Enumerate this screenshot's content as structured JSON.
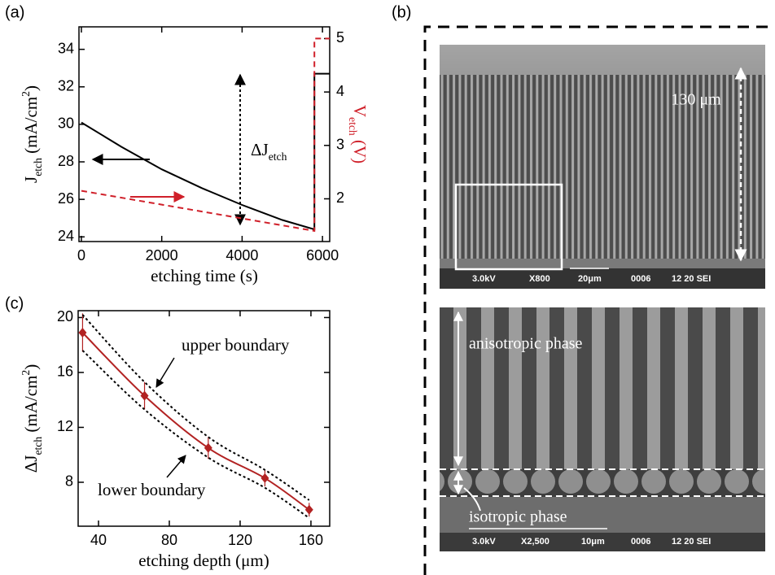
{
  "panel_labels": [
    "(a)",
    "(b)",
    "(c)"
  ],
  "chart_data": [
    {
      "type": "line",
      "x_label": "etching time (s)",
      "y_label": {
        "text": "J",
        "sub": "etch",
        "unit": " (mA/cm",
        "sup": "2",
        "end": ")"
      },
      "y2_label": {
        "text": "V",
        "sub": "etch",
        "unit": " (V)"
      },
      "y2_label_color": "#d0202a",
      "annotation": {
        "text": "ΔJ",
        "sub": "etch"
      },
      "xlim": [
        -60,
        6180
      ],
      "xticks": [
        0,
        2000,
        4000,
        6000
      ],
      "ylim": [
        23.75,
        35.2
      ],
      "yticks": [
        24,
        26,
        28,
        30,
        32,
        34
      ],
      "y2lim": [
        1.2,
        5.22
      ],
      "y2ticks": [
        2,
        3,
        4,
        5
      ],
      "grid": false,
      "series": [
        {
          "color": "#000000",
          "dashed": false,
          "x": [
            0,
            1000,
            2000,
            3000,
            4000,
            5000,
            5800,
            5800,
            6180
          ],
          "values": [
            30.1,
            28.8,
            27.6,
            26.6,
            25.7,
            24.9,
            24.4,
            32.7,
            32.7
          ]
        },
        {
          "color": "#d0202a",
          "dashed": true,
          "axis": "y2",
          "x": [
            0,
            5800,
            5800,
            6180
          ],
          "values": [
            2.15,
            1.4,
            5.0,
            5.0
          ]
        }
      ]
    },
    {
      "type": "errorbar",
      "x_label": "etching depth (μm)",
      "y_label": {
        "text": "ΔJ",
        "sub": "etch",
        "unit": " (mA/cm",
        "sup": "2",
        "end": ")"
      },
      "xlim": [
        28.5,
        170.6
      ],
      "xticks": [
        40,
        80,
        120,
        160
      ],
      "ylim": [
        4.8,
        20.5
      ],
      "yticks": [
        8,
        12,
        16,
        20
      ],
      "grid": false,
      "x": [
        31,
        66,
        102,
        134,
        159
      ],
      "series": [
        {
          "color": "#b22222",
          "dashed": false,
          "marker": "diamond",
          "values": [
            18.9,
            14.3,
            10.5,
            8.3,
            6.0
          ],
          "errors": [
            1.4,
            1.0,
            0.8,
            0.6,
            0.5
          ]
        },
        {
          "name": "upper boundary",
          "color": "#000000",
          "dashed": true,
          "values": [
            20.2,
            15.3,
            11.3,
            8.9,
            6.7
          ]
        },
        {
          "name": "lower boundary",
          "color": "#000000",
          "dashed": true,
          "values": [
            17.6,
            13.3,
            9.8,
            7.6,
            5.4
          ]
        }
      ]
    }
  ],
  "sem_images": [
    {
      "scale_label": "130 μm",
      "info": [
        "3.0kV",
        "X800",
        "20μm",
        "0006",
        "12 20 SEI"
      ]
    },
    {
      "phase_labels": [
        "anisotropic phase",
        "isotropic phase"
      ],
      "info": [
        "3.0kV",
        "X2,500",
        "10μm",
        "0006",
        "12 20 SEI"
      ]
    }
  ]
}
